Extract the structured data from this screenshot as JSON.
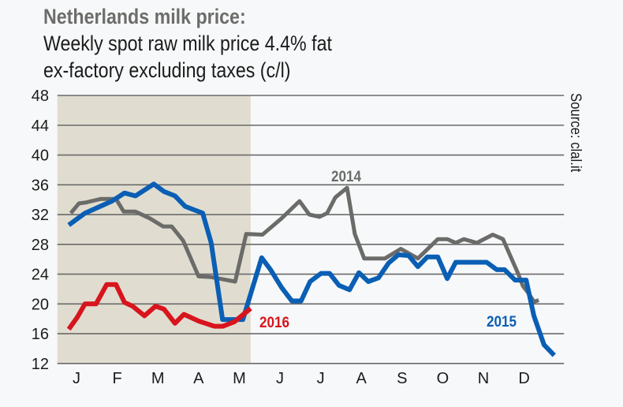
{
  "chart_data": {
    "type": "line",
    "title": "Netherlands milk price:",
    "subtitle_lines": [
      "Weekly spot raw milk price 4.4% fat",
      "ex-factory excluding taxes (c/l)"
    ],
    "source": "Source: clal.it",
    "xlabel": "",
    "ylabel": "",
    "x_ticks": [
      "J",
      "F",
      "M",
      "A",
      "M",
      "J",
      "J",
      "A",
      "S",
      "O",
      "N",
      "D"
    ],
    "x_unit": "month (1 = January label, 12 = December label)",
    "xlim": [
      0.53,
      12.98
    ],
    "ylim": [
      12,
      48
    ],
    "y_ticks": [
      12,
      16,
      20,
      24,
      28,
      32,
      36,
      40,
      44,
      48
    ],
    "grid": "horizontal",
    "shaded_range": [
      0.53,
      5.28
    ],
    "colors": {
      "shade": "#e0ddd0",
      "grid": "#6a6a6a",
      "background": "#f7f8f9"
    },
    "series": [
      {
        "name": "2014",
        "color": "#6b6b69",
        "points": [
          [
            0.86,
            32.2
          ],
          [
            1.06,
            33.5
          ],
          [
            1.21,
            33.6
          ],
          [
            1.6,
            34.1
          ],
          [
            1.97,
            34.1
          ],
          [
            2.16,
            32.4
          ],
          [
            2.45,
            32.4
          ],
          [
            2.8,
            31.5
          ],
          [
            3.13,
            30.4
          ],
          [
            3.34,
            30.4
          ],
          [
            3.62,
            28.5
          ],
          [
            4.0,
            23.7
          ],
          [
            4.31,
            23.6
          ],
          [
            4.9,
            23.0
          ],
          [
            5.17,
            29.4
          ],
          [
            5.57,
            29.3
          ],
          [
            6.04,
            31.5
          ],
          [
            6.48,
            33.8
          ],
          [
            6.72,
            32.0
          ],
          [
            6.97,
            31.7
          ],
          [
            7.16,
            32.2
          ],
          [
            7.36,
            34.3
          ],
          [
            7.65,
            35.6
          ],
          [
            7.84,
            29.4
          ],
          [
            8.07,
            26.1
          ],
          [
            8.58,
            26.1
          ],
          [
            8.97,
            27.4
          ],
          [
            9.39,
            26.1
          ],
          [
            9.88,
            28.7
          ],
          [
            10.11,
            28.7
          ],
          [
            10.32,
            28.2
          ],
          [
            10.52,
            28.7
          ],
          [
            10.84,
            28.2
          ],
          [
            11.23,
            29.3
          ],
          [
            11.48,
            28.7
          ],
          [
            11.85,
            24.1
          ],
          [
            11.97,
            22.4
          ],
          [
            12.1,
            21.5
          ],
          [
            12.24,
            20.3
          ],
          [
            12.36,
            20.5
          ]
        ]
      },
      {
        "name": "2015",
        "color": "#0a5fb4",
        "points": [
          [
            0.81,
            30.6
          ],
          [
            1.21,
            32.2
          ],
          [
            1.54,
            33.0
          ],
          [
            1.87,
            33.8
          ],
          [
            2.18,
            34.9
          ],
          [
            2.45,
            34.5
          ],
          [
            2.9,
            36.1
          ],
          [
            3.15,
            35.1
          ],
          [
            3.42,
            34.5
          ],
          [
            3.67,
            33.1
          ],
          [
            4.1,
            32.2
          ],
          [
            4.31,
            28.2
          ],
          [
            4.59,
            17.9
          ],
          [
            5.09,
            17.9
          ],
          [
            5.55,
            26.2
          ],
          [
            5.77,
            24.6
          ],
          [
            6.04,
            22.2
          ],
          [
            6.29,
            20.4
          ],
          [
            6.52,
            20.4
          ],
          [
            6.74,
            23.0
          ],
          [
            7.01,
            24.1
          ],
          [
            7.22,
            24.1
          ],
          [
            7.45,
            22.5
          ],
          [
            7.71,
            21.9
          ],
          [
            7.94,
            24.2
          ],
          [
            8.17,
            23.0
          ],
          [
            8.42,
            23.5
          ],
          [
            8.67,
            25.5
          ],
          [
            8.91,
            26.6
          ],
          [
            9.16,
            26.5
          ],
          [
            9.39,
            25.0
          ],
          [
            9.62,
            26.3
          ],
          [
            9.88,
            26.3
          ],
          [
            10.11,
            23.4
          ],
          [
            10.32,
            25.6
          ],
          [
            11.08,
            25.6
          ],
          [
            11.33,
            24.6
          ],
          [
            11.52,
            24.6
          ],
          [
            11.78,
            23.2
          ],
          [
            12.05,
            23.2
          ],
          [
            12.24,
            18.4
          ],
          [
            12.49,
            14.5
          ],
          [
            12.74,
            13.1
          ]
        ]
      },
      {
        "name": "2016",
        "color": "#d8141d",
        "points": [
          [
            0.81,
            16.6
          ],
          [
            1.02,
            18.2
          ],
          [
            1.21,
            20.0
          ],
          [
            1.48,
            20.0
          ],
          [
            1.74,
            22.6
          ],
          [
            1.97,
            22.6
          ],
          [
            2.18,
            20.2
          ],
          [
            2.38,
            19.7
          ],
          [
            2.67,
            18.4
          ],
          [
            2.94,
            19.7
          ],
          [
            3.15,
            19.3
          ],
          [
            3.42,
            17.4
          ],
          [
            3.64,
            18.6
          ],
          [
            4.0,
            17.7
          ],
          [
            4.39,
            17.0
          ],
          [
            4.6,
            17.0
          ],
          [
            4.88,
            17.6
          ],
          [
            5.28,
            19.4
          ]
        ]
      }
    ]
  }
}
